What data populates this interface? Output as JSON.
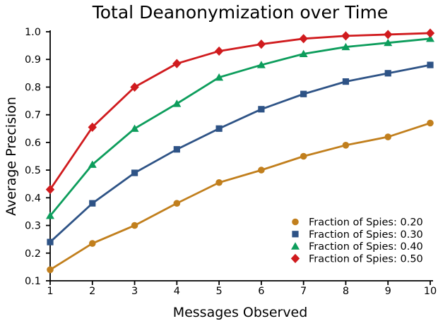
{
  "figure": {
    "background": "#ffffff",
    "text_color": "#000000"
  },
  "chart_data": {
    "type": "line",
    "title": "Total Deanonymization over Time",
    "xlabel": "Messages Observed",
    "ylabel": "Average Precision",
    "x": [
      1,
      2,
      3,
      4,
      5,
      6,
      7,
      8,
      9,
      10
    ],
    "xlim": [
      1,
      10
    ],
    "ylim": [
      0.1,
      1.0
    ],
    "xticks": [
      1,
      2,
      3,
      4,
      5,
      6,
      7,
      8,
      9,
      10
    ],
    "xtick_labels": [
      "1",
      "2",
      "3",
      "4",
      "5",
      "6",
      "7",
      "8",
      "9",
      "10"
    ],
    "yticks": [
      0.1,
      0.2,
      0.3,
      0.4,
      0.5,
      0.6,
      0.7,
      0.8,
      0.9,
      1.0
    ],
    "ytick_labels": [
      "0.1",
      "0.2",
      "0.3",
      "0.4",
      "0.5",
      "0.6",
      "0.7",
      "0.8",
      "0.9",
      "1.0"
    ],
    "grid": false,
    "legend_position": "lower right",
    "series": [
      {
        "name": "Fraction of Spies: 0.20",
        "marker": "circle",
        "color": "#C17F1D",
        "values": [
          0.14,
          0.235,
          0.3,
          0.38,
          0.455,
          0.5,
          0.55,
          0.59,
          0.62,
          0.67
        ]
      },
      {
        "name": "Fraction of Spies: 0.30",
        "marker": "square",
        "color": "#2E5386",
        "values": [
          0.24,
          0.38,
          0.49,
          0.575,
          0.65,
          0.72,
          0.775,
          0.82,
          0.85,
          0.88
        ]
      },
      {
        "name": "Fraction of Spies: 0.40",
        "marker": "triangle",
        "color": "#0D9D5C",
        "values": [
          0.335,
          0.52,
          0.65,
          0.74,
          0.835,
          0.88,
          0.92,
          0.945,
          0.96,
          0.975
        ]
      },
      {
        "name": "Fraction of Spies: 0.50",
        "marker": "diamond",
        "color": "#D01B1E",
        "values": [
          0.43,
          0.655,
          0.8,
          0.885,
          0.93,
          0.955,
          0.975,
          0.985,
          0.99,
          0.995
        ]
      }
    ]
  }
}
